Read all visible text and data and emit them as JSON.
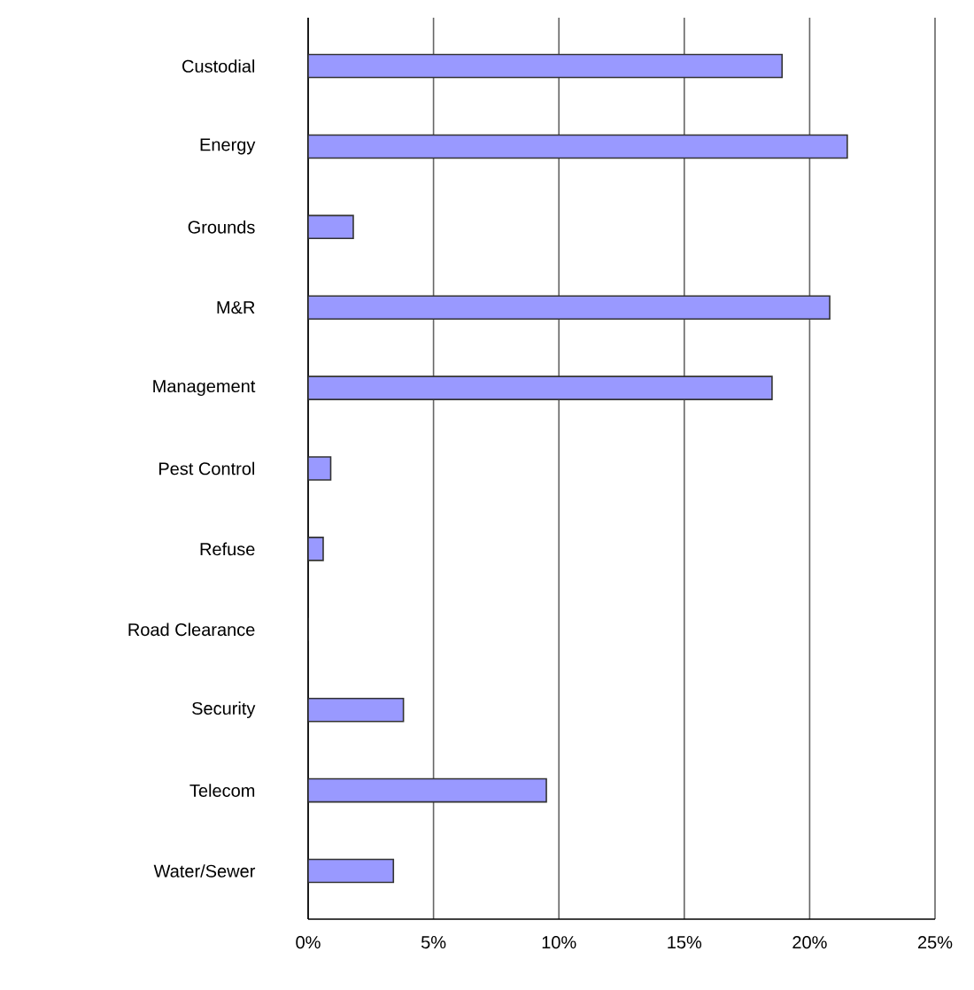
{
  "chart_data": {
    "type": "bar",
    "orientation": "horizontal",
    "categories": [
      "Custodial",
      "Energy",
      "Grounds",
      "M&R",
      "Management",
      "Pest Control",
      "Refuse",
      "Road Clearance",
      "Security",
      "Telecom",
      "Water/Sewer"
    ],
    "values": [
      18.9,
      21.5,
      1.8,
      20.8,
      18.5,
      0.9,
      0.6,
      0,
      3.8,
      9.5,
      3.4
    ],
    "color": "#9999ff",
    "xlim": [
      0,
      25
    ],
    "xticks": [
      {
        "value": 0,
        "label": "0%"
      },
      {
        "value": 5,
        "label": "5%"
      },
      {
        "value": 10,
        "label": "10%"
      },
      {
        "value": 15,
        "label": "15%"
      },
      {
        "value": 20,
        "label": "20%"
      },
      {
        "value": 25,
        "label": "25%"
      }
    ],
    "grid": "x"
  }
}
